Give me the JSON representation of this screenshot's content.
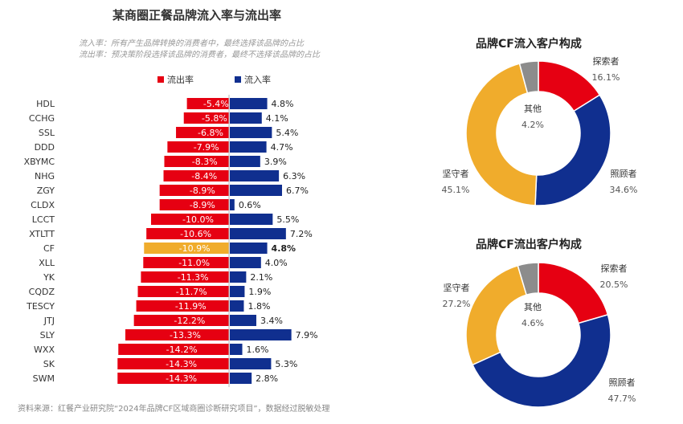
{
  "chart_data": [
    {
      "type": "bar",
      "title": "某商圈正餐品牌流入率与流出率",
      "notes": [
        "流入率：所有产生品牌转换的消费者中，最终选择该品牌的占比",
        "流出率：预决策阶段选择该品牌的消费者，最终不选择该品牌的占比"
      ],
      "categories": [
        "HDL",
        "CCHG",
        "SSL",
        "DDD",
        "XBYMC",
        "NHG",
        "ZGY",
        "CLDX",
        "LCCT",
        "XTLTT",
        "CF",
        "XLL",
        "YK",
        "CQDZ",
        "TESCY",
        "JTJ",
        "SLY",
        "WXX",
        "SK",
        "SWM"
      ],
      "highlight": "CF",
      "series": [
        {
          "name": "流出率",
          "color": "#e60012",
          "highlight_color": "#f0ac2c",
          "values": [
            -5.4,
            -5.8,
            -6.8,
            -7.9,
            -8.3,
            -8.4,
            -8.9,
            -8.9,
            -10.0,
            -10.6,
            -10.9,
            -11.0,
            -11.3,
            -11.7,
            -11.9,
            -12.2,
            -13.3,
            -14.2,
            -14.3,
            -14.3
          ]
        },
        {
          "name": "流入率",
          "color": "#102f8f",
          "values": [
            4.8,
            4.1,
            5.4,
            4.7,
            3.9,
            6.3,
            6.7,
            0.6,
            5.5,
            7.2,
            4.8,
            4.0,
            2.1,
            1.9,
            1.8,
            3.4,
            7.9,
            1.6,
            5.3,
            2.8
          ]
        }
      ],
      "unit": "%",
      "legend": "top"
    },
    {
      "type": "pie",
      "title": "品牌CF流入客户构成",
      "donut": true,
      "labels": [
        "探索者",
        "照顾者",
        "坚守者",
        "其他"
      ],
      "values": [
        16.1,
        34.6,
        45.1,
        4.2
      ],
      "colors": [
        "#e60012",
        "#102f8f",
        "#f0ac2c",
        "#8c8c8c"
      ]
    },
    {
      "type": "pie",
      "title": "品牌CF流出客户构成",
      "donut": true,
      "labels": [
        "探索者",
        "照顾者",
        "坚守者",
        "其他"
      ],
      "values": [
        20.5,
        47.7,
        27.2,
        4.6
      ],
      "colors": [
        "#e60012",
        "#102f8f",
        "#f0ac2c",
        "#8c8c8c"
      ]
    }
  ],
  "source": "资料来源：红餐产业研究院“2024年品牌CF区域商圈诊断研究项目”，数据经过脱敏处理"
}
